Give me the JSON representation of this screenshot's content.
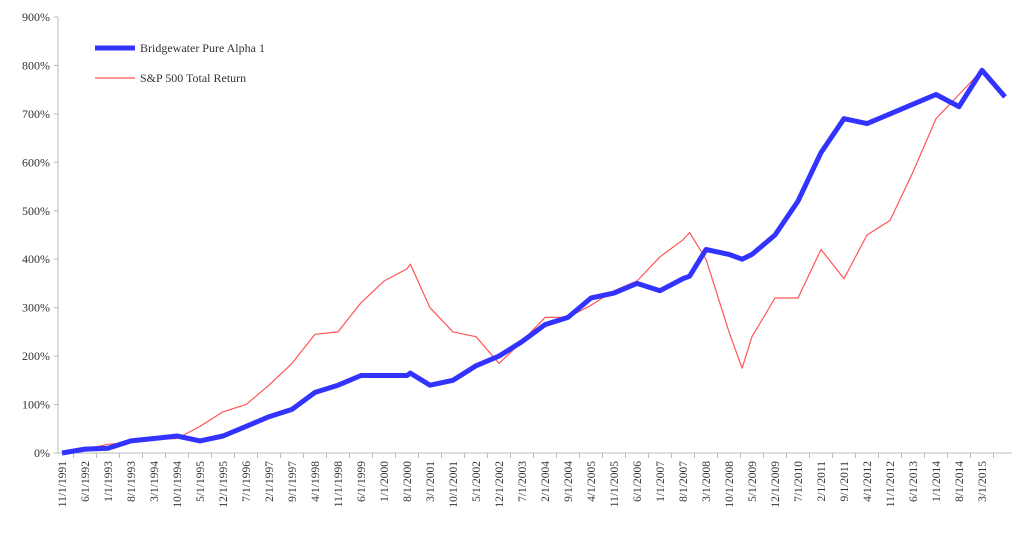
{
  "chart_data": {
    "type": "line",
    "title": "",
    "xlabel": "",
    "ylabel": "",
    "ylim": [
      0,
      900
    ],
    "y_ticks": [
      "0%",
      "100%",
      "200%",
      "300%",
      "400%",
      "500%",
      "600%",
      "700%",
      "800%",
      "900%"
    ],
    "x_ticks": [
      "11/1/1991",
      "6/1/1992",
      "1/1/1993",
      "8/1/1993",
      "3/1/1994",
      "10/1/1994",
      "5/1/1995",
      "12/1/1995",
      "7/1/1996",
      "2/1/1997",
      "9/1/1997",
      "4/1/1998",
      "11/1/1998",
      "6/1/1999",
      "1/1/2000",
      "8/1/2000",
      "3/1/2001",
      "10/1/2001",
      "5/1/2002",
      "12/1/2002",
      "7/1/2003",
      "2/1/2004",
      "9/1/2004",
      "4/1/2005",
      "11/1/2005",
      "6/1/2006",
      "1/1/2007",
      "8/1/2007",
      "3/1/2008",
      "10/1/2008",
      "5/1/2009",
      "12/1/2009",
      "7/1/2010",
      "2/1/2011",
      "9/1/2011",
      "4/1/2012",
      "11/1/2012",
      "6/1/2013",
      "1/1/2014",
      "8/1/2014",
      "3/1/2015"
    ],
    "grid": false,
    "legend_placement": "top-left",
    "x": [
      "1991-11",
      "1992-06",
      "1993-01",
      "1993-08",
      "1994-03",
      "1994-10",
      "1995-05",
      "1995-12",
      "1996-07",
      "1997-02",
      "1997-09",
      "1998-04",
      "1998-11",
      "1999-06",
      "2000-01",
      "2000-08",
      "2000-09",
      "2001-03",
      "2001-10",
      "2002-05",
      "2002-12",
      "2003-07",
      "2004-02",
      "2004-09",
      "2005-04",
      "2005-11",
      "2006-06",
      "2007-01",
      "2007-08",
      "2007-10",
      "2008-03",
      "2008-10",
      "2009-02",
      "2009-05",
      "2009-12",
      "2010-07",
      "2011-02",
      "2011-09",
      "2012-04",
      "2012-11",
      "2013-06",
      "2014-01",
      "2014-08",
      "2015-03",
      "2015-10"
    ],
    "series": [
      {
        "name": "Bridgewater Pure Alpha 1",
        "color": "#3333ff",
        "values": [
          0,
          8,
          10,
          25,
          30,
          35,
          25,
          35,
          55,
          75,
          90,
          125,
          140,
          160,
          160,
          160,
          165,
          140,
          150,
          180,
          200,
          230,
          265,
          280,
          320,
          330,
          350,
          335,
          360,
          365,
          420,
          410,
          400,
          410,
          450,
          520,
          620,
          690,
          680,
          700,
          720,
          740,
          715,
          790,
          735
        ]
      },
      {
        "name": "S&P 500 Total Return",
        "color": "#ff5555",
        "values": [
          0,
          8,
          18,
          22,
          28,
          30,
          55,
          85,
          100,
          140,
          185,
          245,
          250,
          310,
          355,
          380,
          390,
          300,
          250,
          240,
          185,
          230,
          280,
          280,
          305,
          335,
          355,
          405,
          440,
          455,
          400,
          250,
          175,
          240,
          320,
          320,
          420,
          360,
          450,
          480,
          580,
          690,
          740,
          790,
          735
        ]
      }
    ]
  }
}
